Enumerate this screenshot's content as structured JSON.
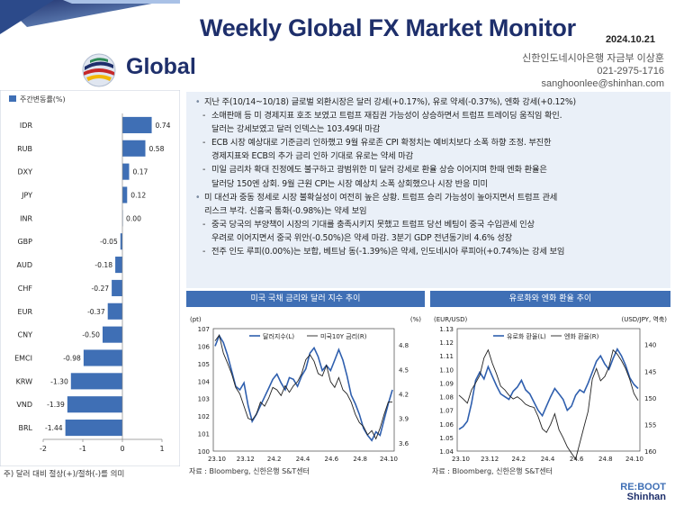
{
  "header": {
    "title": "Weekly Global FX Market Monitor",
    "date": "2024.10.21",
    "brand": "Global",
    "contact": [
      "신한인도네시아은행 자금부 이상훈",
      "021-2975-1716",
      "sanghoonlee@shinhan.com"
    ]
  },
  "summary": {
    "lines": [
      {
        "level": 1,
        "text": "지난 주(10/14~10/18) 글로벌 외환시장은 달러 강세(+0.17%), 유로 약세(-0.37%), 엔화 강세(+0.12%)"
      },
      {
        "level": 2,
        "text": "소매판매 등 미 경제지표 호조 보였고 트럼프 재집권 가능성이 상승하면서 트럼프 트레이딩 움직임 확인."
      },
      {
        "level": 2,
        "text": "달러는 강세보였고 달러 인덱스는 103.49대 마감",
        "cont": true
      },
      {
        "level": 2,
        "text": "ECB 시장 예상대로 기준금리 인하했고 9월 유로존 CPI 확정치는 예비치보다 소폭 하향 조정. 부진한"
      },
      {
        "level": 2,
        "text": "경제지표와 ECB의 추가 금리 인하 기대로 유로는 약세 마감",
        "cont": true
      },
      {
        "level": 2,
        "text": "미일 금리차 확대 진정에도 불구하고 광범위한 미 달러 강세로 환율 상승 이어지며 한때 엔화 환율은"
      },
      {
        "level": 2,
        "text": "달러당 150엔 상회. 9월 근원 CPI는 시장 예상치 소폭 상회했으나 시장 반응 미미",
        "cont": true
      },
      {
        "level": 1,
        "text": "미 대선과 중동 정세로 시장 불확실성이 여전히 높은 상황. 트럼프 승리 가능성이 높아지면서 트럼프 관세"
      },
      {
        "level": 1,
        "text": "리스크 부각. 신흥국 통화(-0.98%)는 약세 보임",
        "cont": true
      },
      {
        "level": 2,
        "text": "중국 당국의 부양책이 시장의 기대를 충족시키지 못했고 트럼프 당선 베팅이 중국 수입관세 인상"
      },
      {
        "level": 2,
        "text": "우려로 이어지면서 중국 위안(-0.50%)은 약세 마감. 3분기 GDP 전년동기비 4.6% 성장",
        "cont": true
      },
      {
        "level": 2,
        "text": "전주 인도 루피(0.00%)는 보합, 베트남 동(-1.39%)은 약세, 인도네시아 루피아(+0.74%)는 강세 보임"
      }
    ]
  },
  "left_note": "주) 달러 대비 절상(+)/절하(-)를 의미",
  "chart_data": [
    {
      "type": "bar",
      "orientation": "horizontal",
      "legend": [
        "주간변동률(%)"
      ],
      "categories": [
        "IDR",
        "RUB",
        "DXY",
        "JPY",
        "INR",
        "GBP",
        "AUD",
        "CHF",
        "EUR",
        "CNY",
        "EMCI",
        "KRW",
        "VND",
        "BRL"
      ],
      "values": [
        0.74,
        0.58,
        0.17,
        0.12,
        0.0,
        -0.05,
        -0.18,
        -0.27,
        -0.37,
        -0.5,
        -0.98,
        -1.3,
        -1.39,
        -1.44
      ],
      "value_labels": [
        "0.74",
        "0.58",
        "0.17",
        "0.12",
        "0.00",
        "-0.05",
        "-0.18",
        "-0.27",
        "-0.37",
        "-0.50",
        "-0.98",
        "-1.30",
        "-1.39",
        "-1.44"
      ],
      "xlim": [
        -2,
        1
      ],
      "xticks": [
        "-2",
        "-1",
        "0",
        "1"
      ],
      "color": "#3f6fb5"
    },
    {
      "type": "line",
      "title": "미국 국채 금리와 달러 지수 추이",
      "left_unit": "(pt)",
      "right_unit": "(%)",
      "xticks": [
        "23.10",
        "23.12",
        "24.2",
        "24.4",
        "24.6",
        "24.8",
        "24.10"
      ],
      "ylim_left": [
        100,
        107
      ],
      "yticks_left": [
        "100",
        "101",
        "102",
        "103",
        "104",
        "105",
        "106",
        "107"
      ],
      "ylim_right": [
        3.5,
        5.0
      ],
      "yticks_right": [
        "3.6",
        "3.9",
        "4.2",
        "4.5",
        "4.8"
      ],
      "series": [
        {
          "name": "달러지수(L)",
          "axis": "left",
          "color": "#2f5fae",
          "values": [
            106.0,
            106.6,
            106.2,
            105.5,
            104.6,
            103.7,
            103.5,
            103.9,
            102.6,
            101.7,
            102.1,
            102.6,
            103.1,
            103.6,
            104.1,
            104.4,
            103.9,
            103.5,
            104.2,
            104.1,
            103.7,
            104.3,
            104.7,
            105.6,
            105.9,
            105.4,
            104.6,
            104.9,
            104.6,
            105.2,
            105.8,
            105.2,
            104.3,
            103.2,
            102.7,
            102.1,
            101.3,
            100.9,
            100.6,
            101.1,
            100.9,
            101.8,
            102.7,
            103.5
          ]
        },
        {
          "name": "미국10Y 금리(R)",
          "axis": "right",
          "color": "#222222",
          "values": [
            4.85,
            4.92,
            4.7,
            4.58,
            4.45,
            4.28,
            4.2,
            4.05,
            3.9,
            3.88,
            3.95,
            4.1,
            4.05,
            4.15,
            4.28,
            4.25,
            4.18,
            4.3,
            4.22,
            4.3,
            4.35,
            4.45,
            4.62,
            4.68,
            4.6,
            4.45,
            4.42,
            4.55,
            4.35,
            4.28,
            4.4,
            4.25,
            4.2,
            4.1,
            3.95,
            3.85,
            3.8,
            3.7,
            3.75,
            3.65,
            3.78,
            3.95,
            4.1,
            4.1
          ]
        }
      ],
      "source": "자료 : Bloomberg, 신한은행 S&T센터"
    },
    {
      "type": "line",
      "title": "유로화와 엔화 환율 추이",
      "left_unit": "(EUR/USD)",
      "right_unit": "(USD/JPY, 역축)",
      "xticks": [
        "23.10",
        "23.12",
        "24.2",
        "24.4",
        "24.6",
        "24.8",
        "24.10"
      ],
      "ylim_left": [
        1.04,
        1.13
      ],
      "yticks_left": [
        "1.04",
        "1.05",
        "1.06",
        "1.07",
        "1.08",
        "1.09",
        "1.10",
        "1.11",
        "1.12",
        "1.13"
      ],
      "ylim_right": [
        160,
        137
      ],
      "yticks_right": [
        "140",
        "145",
        "150",
        "155",
        "160"
      ],
      "series": [
        {
          "name": "유로화 환율(L)",
          "axis": "left",
          "color": "#2f5fae",
          "values": [
            1.056,
            1.058,
            1.062,
            1.075,
            1.092,
            1.098,
            1.093,
            1.102,
            1.095,
            1.088,
            1.082,
            1.08,
            1.078,
            1.084,
            1.087,
            1.092,
            1.085,
            1.082,
            1.076,
            1.07,
            1.066,
            1.073,
            1.08,
            1.086,
            1.082,
            1.078,
            1.07,
            1.073,
            1.081,
            1.085,
            1.083,
            1.09,
            1.098,
            1.106,
            1.11,
            1.104,
            1.1,
            1.108,
            1.115,
            1.11,
            1.103,
            1.094,
            1.089,
            1.086
          ]
        },
        {
          "name": "엔화 환율(R)",
          "axis": "right",
          "color": "#222222",
          "values": [
            149.5,
            150.2,
            151.0,
            148.5,
            147.2,
            145.8,
            142.5,
            141.0,
            143.5,
            145.5,
            147.8,
            148.5,
            149.5,
            150.2,
            149.8,
            150.4,
            151.2,
            151.6,
            151.8,
            153.5,
            155.8,
            156.5,
            155.0,
            153.0,
            156.0,
            157.5,
            159.2,
            160.4,
            161.5,
            158.5,
            155.5,
            152.5,
            146.5,
            144.5,
            146.8,
            146.0,
            144.2,
            141.0,
            141.8,
            143.0,
            144.5,
            146.5,
            149.2,
            150.5
          ]
        }
      ],
      "source": "자료 : Bloomberg, 신한은행 S&T센터"
    }
  ],
  "footer": {
    "logo_line1": "RE:BOOT",
    "logo_line2": "Shinhan"
  },
  "colors": {
    "navy": "#1e2f6b",
    "accent": "#3f6fb5",
    "panel_bg": "#eaf0f8"
  }
}
